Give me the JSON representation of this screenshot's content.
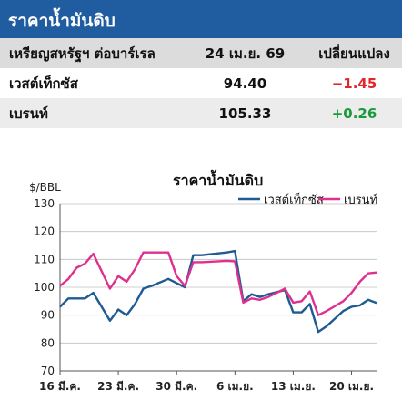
{
  "header": {
    "title": "ราคาน้ำมันดิบ"
  },
  "table": {
    "headers": [
      "เหรียญสหรัฐฯ ต่อบาร์เรล",
      "24 เม.ย. 69",
      "เปลี่ยนแปลง"
    ],
    "rows": [
      {
        "name": "เวสต์เท็กซัส",
        "price": "94.40",
        "change": "−1.45"
      },
      {
        "name": "เบรนท์",
        "price": "105.33",
        "change": "+0.26"
      }
    ]
  },
  "colors": {
    "header_bg": "#1f5da0",
    "wti": "#1d5b92",
    "brent": "#e0308f",
    "negative": "#e1262d",
    "positive": "#1a9a3c"
  },
  "chart_data": {
    "type": "line",
    "title": "ราคาน้ำมันดิบ",
    "ylabel": "$/BBL",
    "ylim": [
      70,
      130
    ],
    "yticks": [
      70,
      80,
      90,
      100,
      110,
      120,
      130
    ],
    "xticks": [
      "16 มี.ค.",
      "23 มี.ค.",
      "30 มี.ค.",
      "6 เม.ย.",
      "13 เม.ย.",
      "20 เม.ย."
    ],
    "xtick_days": [
      0,
      7,
      14,
      21,
      28,
      35
    ],
    "x_days": [
      0,
      1,
      2,
      3,
      4,
      6,
      7,
      8,
      9,
      10,
      11,
      13,
      14,
      15,
      16,
      17,
      20,
      21,
      22,
      23,
      24,
      25,
      27,
      28,
      29,
      30,
      31,
      32,
      34,
      35,
      36,
      37,
      38
    ],
    "legend_position": "top-right",
    "grid": true,
    "series": [
      {
        "name": "เวสต์เท็กซัส",
        "color": "#1d5b92",
        "values": [
          93,
          96,
          96,
          96,
          98,
          88,
          92,
          90,
          94,
          99.5,
          100.5,
          103,
          101.5,
          100,
          111.5,
          111.5,
          112.5,
          113,
          95,
          97.5,
          96.5,
          97.5,
          99,
          91,
          91,
          94,
          84,
          86,
          91.5,
          93,
          93.5,
          95.5,
          94.4
        ]
      },
      {
        "name": "เบรนท์",
        "color": "#e0308f",
        "values": [
          100.5,
          103,
          107,
          108.5,
          112,
          99.5,
          104,
          102,
          106.5,
          112.5,
          112.5,
          112.5,
          104,
          100.5,
          109,
          109,
          109.5,
          109.3,
          94.5,
          96,
          95.5,
          96.5,
          99.5,
          94.5,
          95,
          98.5,
          90,
          91.5,
          95,
          98,
          102,
          105,
          105.33
        ]
      }
    ]
  }
}
